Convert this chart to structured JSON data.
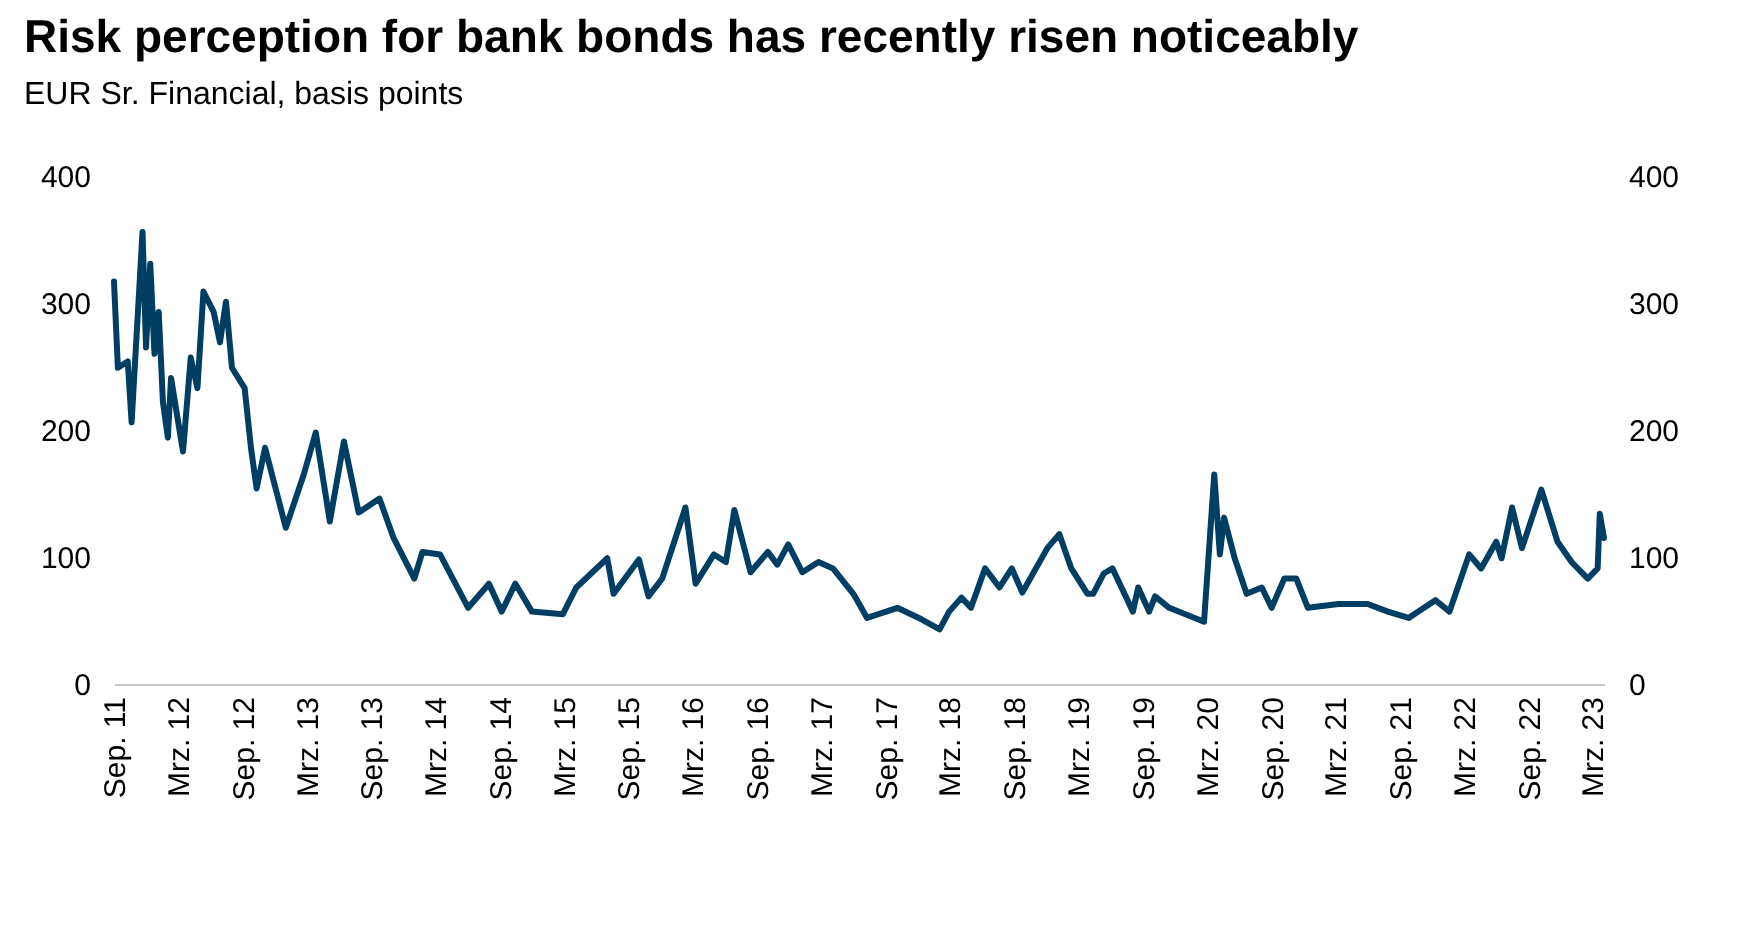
{
  "chart_data": {
    "type": "line",
    "title": "Risk perception for bank bonds has recently risen noticeably",
    "subtitle": "EUR Sr. Financial, basis points",
    "xlim": [
      "2011-09-01",
      "2023-04-03"
    ],
    "x": [
      "2011-09-01",
      "2011-09-12",
      "2011-10-10",
      "2011-10-21",
      "2011-11-21",
      "2011-12-01",
      "2011-12-13",
      "2011-12-25",
      "2012-01-06",
      "2012-01-18",
      "2012-02-01",
      "2012-02-10",
      "2012-03-15",
      "2012-04-06",
      "2012-04-25",
      "2012-05-12",
      "2012-06-10",
      "2012-06-28",
      "2012-07-15",
      "2012-08-01",
      "2012-09-06",
      "2012-09-24",
      "2012-10-10",
      "2012-11-03",
      "2013-01-01",
      "2013-02-21",
      "2013-03-27",
      "2013-05-06",
      "2013-06-15",
      "2013-07-27",
      "2013-09-24",
      "2013-11-03",
      "2014-01-01",
      "2014-01-24",
      "2014-03-15",
      "2014-06-03",
      "2014-08-01",
      "2014-09-06",
      "2014-10-15",
      "2014-12-01",
      "2015-02-27",
      "2015-04-06",
      "2015-07-03",
      "2015-07-21",
      "2015-10-01",
      "2015-10-28",
      "2015-12-06",
      "2016-02-10",
      "2016-03-10",
      "2016-05-01",
      "2016-06-04",
      "2016-06-28",
      "2016-08-13",
      "2016-10-01",
      "2016-10-28",
      "2016-11-28",
      "2017-01-07",
      "2017-02-22",
      "2017-04-04",
      "2017-06-01",
      "2017-07-10",
      "2017-10-04",
      "2017-12-04",
      "2018-02-01",
      "2018-02-28",
      "2018-04-04",
      "2018-05-01",
      "2018-06-10",
      "2018-07-21",
      "2018-08-25",
      "2018-09-24",
      "2018-12-04",
      "2019-01-07",
      "2019-02-10",
      "2019-03-28",
      "2019-04-13",
      "2019-05-13",
      "2019-06-07",
      "2019-08-04",
      "2019-08-19",
      "2019-09-19",
      "2019-10-06",
      "2019-11-15",
      "2020-02-22",
      "2020-03-22",
      "2020-04-07",
      "2020-04-19",
      "2020-05-19",
      "2020-06-22",
      "2020-08-04",
      "2020-09-01",
      "2020-10-07",
      "2020-11-10",
      "2020-12-13",
      "2021-03-10",
      "2021-06-01",
      "2021-07-28",
      "2021-09-25",
      "2021-12-10",
      "2022-01-19",
      "2022-03-16",
      "2022-04-19",
      "2022-06-01",
      "2022-06-16",
      "2022-07-16",
      "2022-08-13",
      "2022-10-07",
      "2022-11-22",
      "2023-01-01",
      "2023-02-16",
      "2023-03-16",
      "2023-03-22",
      "2023-04-03"
    ],
    "series": [
      {
        "color": "#003f63",
        "values": [
          317,
          249,
          254,
          206,
          356,
          265,
          331,
          260,
          293,
          222,
          194,
          241,
          183,
          257,
          233,
          309,
          293,
          269,
          301,
          249,
          233,
          186,
          154,
          186,
          123,
          165,
          198,
          128,
          191,
          135,
          146,
          115,
          83,
          104,
          102,
          60,
          79,
          57,
          79,
          57,
          55,
          76,
          99,
          71,
          98,
          69,
          83,
          139,
          79,
          102,
          96,
          137,
          88,
          104,
          94,
          110,
          88,
          96,
          91,
          71,
          52,
          60,
          52,
          43,
          57,
          68,
          60,
          91,
          76,
          91,
          72,
          107,
          118,
          91,
          71,
          71,
          87,
          91,
          57,
          76,
          57,
          69,
          60,
          49,
          165,
          102,
          131,
          99,
          71,
          76,
          60,
          83,
          83,
          60,
          63,
          63,
          57,
          52,
          66,
          57,
          102,
          91,
          112,
          99,
          139,
          107,
          153,
          112,
          96,
          83,
          91,
          134,
          115
        ]
      }
    ],
    "xticks": [
      {
        "value": "2011-09",
        "label": "Sep. 11"
      },
      {
        "value": "2012-03",
        "label": "Mrz. 12"
      },
      {
        "value": "2012-09",
        "label": "Sep. 12"
      },
      {
        "value": "2013-03",
        "label": "Mrz. 13"
      },
      {
        "value": "2013-09",
        "label": "Sep. 13"
      },
      {
        "value": "2014-03",
        "label": "Mrz. 14"
      },
      {
        "value": "2014-09",
        "label": "Sep. 14"
      },
      {
        "value": "2015-03",
        "label": "Mrz. 15"
      },
      {
        "value": "2015-09",
        "label": "Sep. 15"
      },
      {
        "value": "2016-03",
        "label": "Mrz. 16"
      },
      {
        "value": "2016-09",
        "label": "Sep. 16"
      },
      {
        "value": "2017-03",
        "label": "Mrz. 17"
      },
      {
        "value": "2017-09",
        "label": "Sep. 17"
      },
      {
        "value": "2018-03",
        "label": "Mrz. 18"
      },
      {
        "value": "2018-09",
        "label": "Sep. 18"
      },
      {
        "value": "2019-03",
        "label": "Mrz. 19"
      },
      {
        "value": "2019-09",
        "label": "Sep. 19"
      },
      {
        "value": "2020-03",
        "label": "Mrz. 20"
      },
      {
        "value": "2020-09",
        "label": "Sep. 20"
      },
      {
        "value": "2021-03",
        "label": "Mrz. 21"
      },
      {
        "value": "2021-09",
        "label": "Sep. 21"
      },
      {
        "value": "2022-03",
        "label": "Mrz. 22"
      },
      {
        "value": "2022-09",
        "label": "Sep. 22"
      },
      {
        "value": "2023-03",
        "label": "Mrz. 23"
      }
    ],
    "ylim": [
      0,
      400
    ],
    "yticks": [
      0,
      100,
      200,
      300,
      400
    ],
    "y2lim": [
      0,
      400
    ],
    "y2ticks": [
      0,
      100,
      200,
      300,
      400
    ],
    "grid": false,
    "marker": "none",
    "line_style": "solid"
  }
}
